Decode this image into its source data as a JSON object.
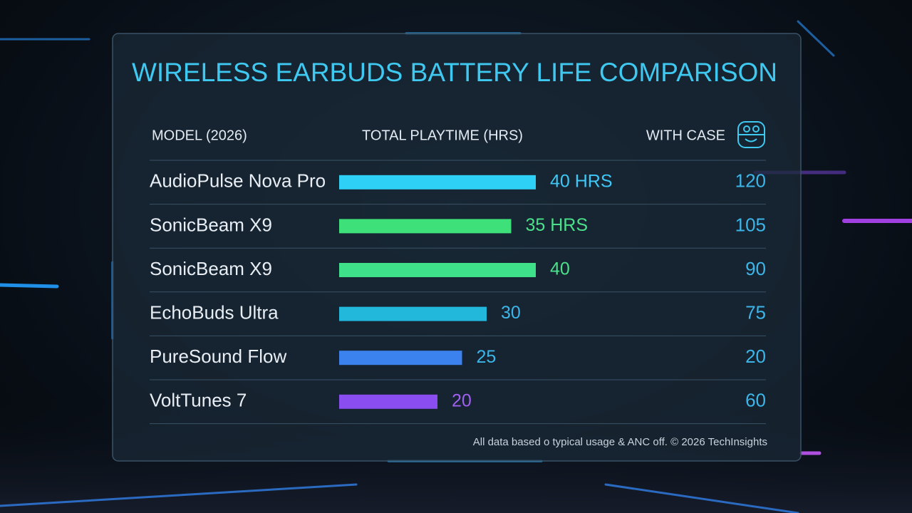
{
  "header": {
    "title": "WIRELESS EARBUDS BATTERY LIFE COMPARISON"
  },
  "table": {
    "columns": [
      "MODEL (2026)",
      "TOTAL PLAYTIME (HRS)",
      "WITH CASE"
    ],
    "rows": [
      {
        "model": "AudioPulse Nova Pro",
        "playtime": 40,
        "playtime_label": "40 HRS",
        "case": 120,
        "color": "#2fd0f5",
        "label_color": "#3fc8f5"
      },
      {
        "model": "SonicBeam X9",
        "playtime": 35,
        "playtime_label": "35 HRS",
        "case": 105,
        "color": "#3ee07a",
        "label_color": "#4be08a"
      },
      {
        "model": "SonicBeam X9",
        "playtime": 40,
        "case": 90,
        "color": "#3ee08a",
        "label_color": "#4be08a"
      },
      {
        "model": "EchoBuds Ultra",
        "playtime": 30,
        "case": 75,
        "color": "#22b8dc",
        "label_color": "#3db5e8"
      },
      {
        "model": "PureSound Flow",
        "playtime": 25,
        "case": 20,
        "color": "#3c82ee",
        "label_color": "#3db5e8"
      },
      {
        "model": "VoltTunes 7",
        "playtime": 20,
        "case": 60,
        "color": "#8a4df0",
        "label_color": "#a060f0"
      }
    ]
  },
  "footer": {
    "note": "All data based o typical usage & ANC off.  © 2026 TechInsights"
  }
}
